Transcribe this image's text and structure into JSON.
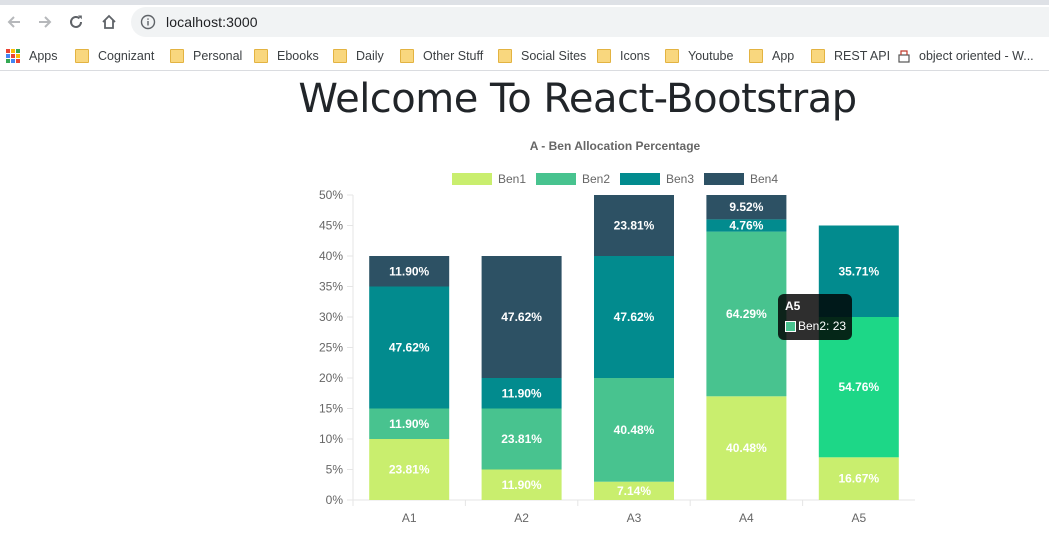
{
  "browser": {
    "url": "localhost:3000",
    "bookmarks": [
      {
        "label": "Apps",
        "icon": "apps-grid-icon"
      },
      {
        "label": "Cognizant",
        "icon": "folder-icon"
      },
      {
        "label": "Personal",
        "icon": "folder-icon"
      },
      {
        "label": "Ebooks",
        "icon": "folder-icon"
      },
      {
        "label": "Daily",
        "icon": "folder-icon"
      },
      {
        "label": "Other Stuff",
        "icon": "folder-icon"
      },
      {
        "label": "Social Sites",
        "icon": "folder-icon"
      },
      {
        "label": "Icons",
        "icon": "folder-icon"
      },
      {
        "label": "Youtube",
        "icon": "folder-icon"
      },
      {
        "label": "App",
        "icon": "folder-icon"
      },
      {
        "label": "REST API",
        "icon": "folder-icon"
      },
      {
        "label": "object oriented - W...",
        "icon": "site-favicon-icon"
      }
    ]
  },
  "page": {
    "heading": "Welcome To React-Bootstrap"
  },
  "chart_data": {
    "type": "bar",
    "stacked": true,
    "title": "A - Ben Allocation Percentage",
    "categories": [
      "A1",
      "A2",
      "A3",
      "A4",
      "A5"
    ],
    "ylim": [
      0,
      50
    ],
    "ytick_step": 5,
    "y_unit": "%",
    "grid": false,
    "legend_position": "top",
    "series": [
      {
        "name": "Ben1",
        "color": "#c9ee6e",
        "values": [
          10,
          5,
          3,
          17,
          7
        ],
        "labels": [
          "23.81%",
          "11.90%",
          "7.14%",
          "40.48%",
          "16.67%"
        ]
      },
      {
        "name": "Ben2",
        "color": "#48c38f",
        "values": [
          5,
          10,
          17,
          27,
          23
        ],
        "labels": [
          "11.90%",
          "23.81%",
          "40.48%",
          "64.29%",
          "54.76%"
        ]
      },
      {
        "name": "Ben3",
        "color": "#028b8e",
        "values": [
          20,
          5,
          20,
          2,
          15
        ],
        "labels": [
          "47.62%",
          "11.90%",
          "47.62%",
          "4.76%",
          "35.71%"
        ]
      },
      {
        "name": "Ben4",
        "color": "#2d5164",
        "values": [
          5,
          20,
          10,
          4,
          0
        ],
        "labels": [
          "11.90%",
          "47.62%",
          "23.81%",
          "9.52%",
          ""
        ]
      }
    ],
    "highlight": {
      "category": "A5",
      "series": "Ben2",
      "color": "#1dd787"
    },
    "tooltip": {
      "title": "A5",
      "label": "Ben2: 23"
    }
  }
}
